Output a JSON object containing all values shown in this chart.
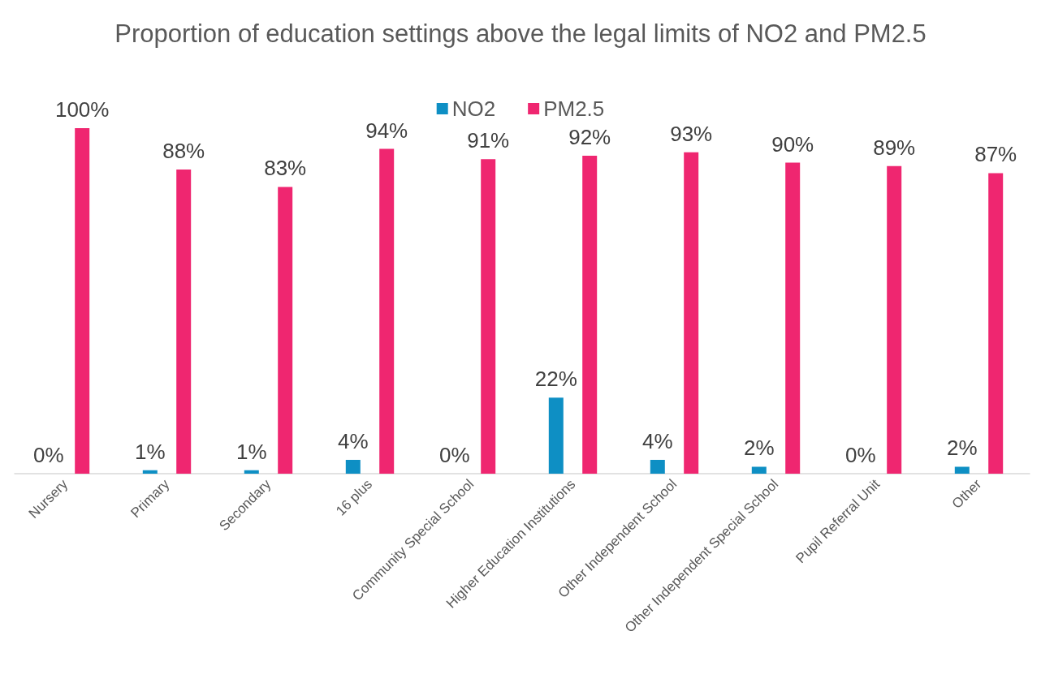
{
  "chart_data": {
    "type": "bar",
    "title": "Proportion of education settings above the legal limits of NO2 and PM2.5",
    "categories": [
      "Nursery",
      "Primary",
      "Secondary",
      "16 plus",
      "Community Special School",
      "Higher Education Institutions",
      "Other Independent School",
      "Other Independent Special School",
      "Pupil Referral Unit",
      "Other"
    ],
    "series": [
      {
        "name": "NO2",
        "color": "#0e8fc4",
        "values": [
          0,
          1,
          1,
          4,
          0,
          22,
          4,
          2,
          0,
          2
        ],
        "value_labels": [
          "0%",
          "1%",
          "1%",
          "4%",
          "0%",
          "22%",
          "4%",
          "2%",
          "0%",
          "2%"
        ]
      },
      {
        "name": "PM2.5",
        "color": "#ef2670",
        "values": [
          100,
          88,
          83,
          94,
          91,
          92,
          93,
          90,
          89,
          87
        ],
        "value_labels": [
          "100%",
          "88%",
          "83%",
          "94%",
          "91%",
          "92%",
          "93%",
          "90%",
          "89%",
          "87%"
        ]
      }
    ],
    "legend": "top",
    "grid": false
  }
}
